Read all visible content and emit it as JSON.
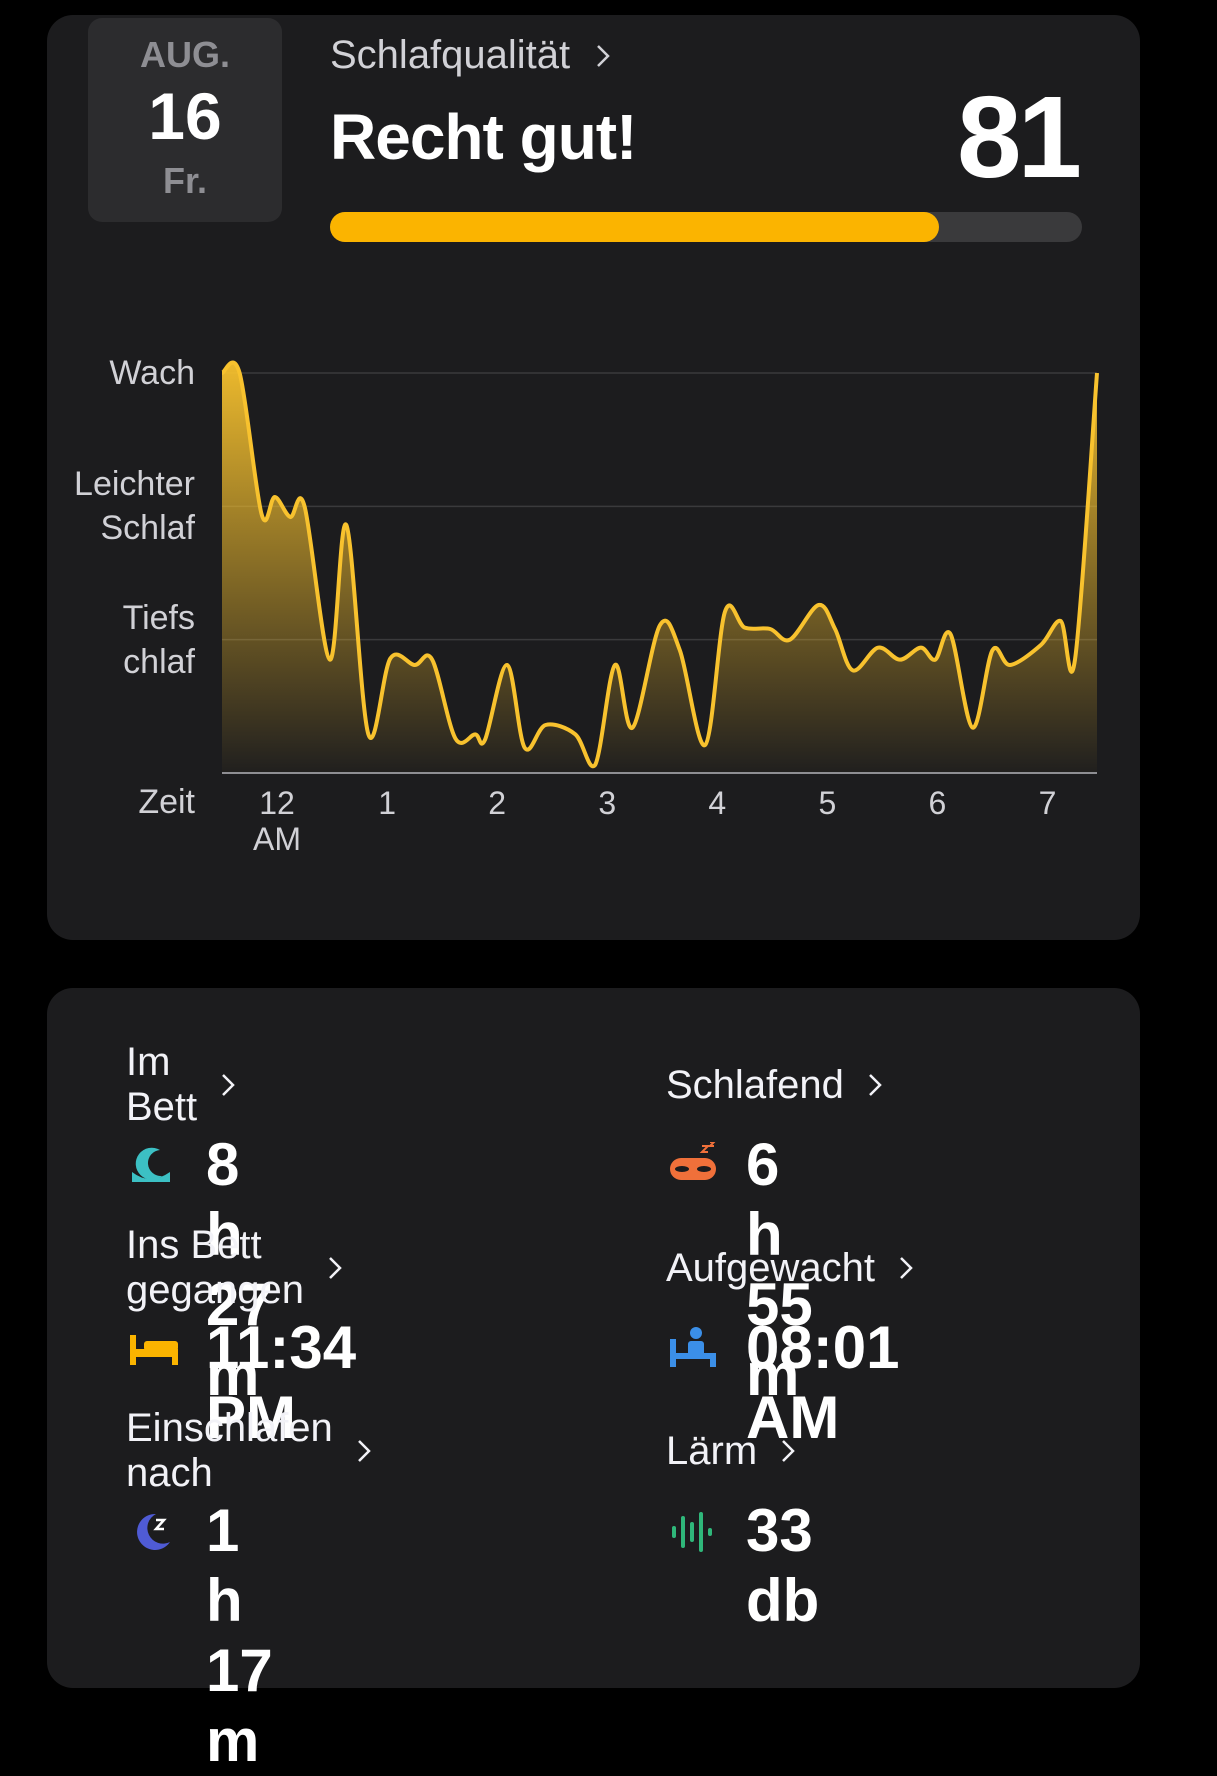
{
  "header": {
    "date": {
      "month": "AUG.",
      "day": "16",
      "weekday": "Fr."
    },
    "quality_label": "Schlafqualität",
    "rating": "Recht gut!",
    "score": 81,
    "score_range": [
      0,
      100
    ]
  },
  "chart_data": {
    "type": "line",
    "xlabel": "Zeit",
    "color": "#f8c22e",
    "x": [
      -0.5,
      -0.34,
      -0.14,
      -0.02,
      0.12,
      0.25,
      0.48,
      0.63,
      0.83,
      1.03,
      1.25,
      1.41,
      1.62,
      1.8,
      1.89,
      2.09,
      2.25,
      2.44,
      2.71,
      2.89,
      3.07,
      3.23,
      3.48,
      3.66,
      3.89,
      4.07,
      4.25,
      4.48,
      4.66,
      4.92,
      5.07,
      5.23,
      5.46,
      5.66,
      5.85,
      5.98,
      6.12,
      6.32,
      6.5,
      6.66,
      6.94,
      7.12,
      7.25,
      7.45
    ],
    "values": [
      3.0,
      3.0,
      1.94,
      2.07,
      1.92,
      2.0,
      0.85,
      1.86,
      0.29,
      0.86,
      0.81,
      0.85,
      0.26,
      0.29,
      0.25,
      0.81,
      0.19,
      0.36,
      0.29,
      0.06,
      0.81,
      0.34,
      1.11,
      0.92,
      0.21,
      1.21,
      1.09,
      1.08,
      1.0,
      1.26,
      1.08,
      0.77,
      0.94,
      0.85,
      0.94,
      0.85,
      1.04,
      0.34,
      0.92,
      0.81,
      0.96,
      1.14,
      0.85,
      3.0
    ],
    "xlim": [
      -0.5,
      7.45
    ],
    "xticks": [
      {
        "value": 0,
        "label": "12 AM"
      },
      1,
      2,
      3,
      4,
      5,
      6,
      7
    ],
    "ylim": [
      0,
      3
    ],
    "yticks": [
      {
        "value": 3,
        "label": "Wach"
      },
      {
        "value": 2,
        "label": "Leichter Schlaf"
      },
      {
        "value": 1,
        "label": "Tiefschlaf"
      }
    ],
    "grid": true
  },
  "stats": [
    {
      "label": "Im Bett",
      "value": "8 h 27 m"
    },
    {
      "label": "Schlafend",
      "value": "6 h 55 m"
    },
    {
      "label": "Ins Bett gegangen",
      "value": "11:34 PM"
    },
    {
      "label": "Aufgewacht",
      "value": "08:01 AM"
    },
    {
      "label": "Einschlafen nach",
      "value": "1 h 17 m"
    },
    {
      "label": "Lärm",
      "value": "33 db"
    }
  ]
}
